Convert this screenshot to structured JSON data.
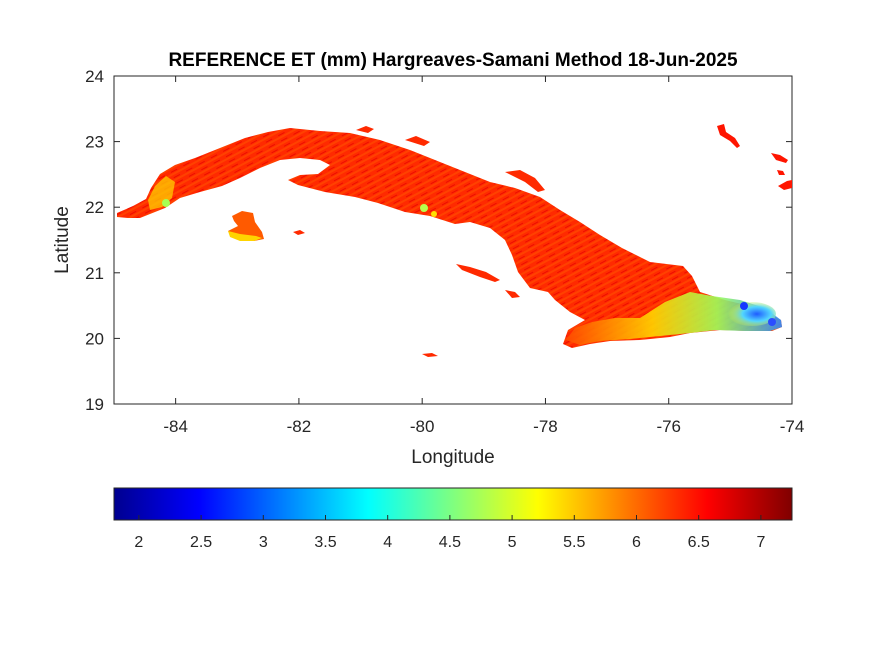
{
  "chart_data": {
    "type": "heatmap",
    "title": "REFERENCE ET (mm) Hargreaves-Samani Method  18-Jun-2025",
    "xlabel": "Longitude",
    "ylabel": "Latitude",
    "xlim": [
      -85,
      -74
    ],
    "ylim": [
      19,
      24
    ],
    "x_ticks": [
      -84,
      -82,
      -80,
      -78,
      -76,
      -74
    ],
    "y_ticks": [
      19,
      20,
      21,
      22,
      23,
      24
    ],
    "x_tick_labels": [
      "-84",
      "-82",
      "-80",
      "-78",
      "-76",
      "-74"
    ],
    "y_tick_labels": [
      "19",
      "20",
      "21",
      "22",
      "23",
      "24"
    ],
    "colorbar": {
      "orientation": "horizontal",
      "placement": "below",
      "colormap": "jet",
      "range": [
        1.8,
        7.25
      ],
      "ticks": [
        2,
        2.5,
        3,
        3.5,
        4,
        4.5,
        5,
        5.5,
        6,
        6.5,
        7
      ],
      "tick_labels": [
        "2",
        "2.5",
        "3",
        "3.5",
        "4",
        "4.5",
        "5",
        "5.5",
        "6",
        "6.5",
        "7"
      ]
    },
    "region": "Cuba",
    "dominant_value_range": [
      6,
      7
    ],
    "areas": [
      {
        "feature": "main-island",
        "value": 6.6
      },
      {
        "feature": "isla-de-la-juventud",
        "value": 6.0
      },
      {
        "feature": "western-tip",
        "value": 5.4
      },
      {
        "feature": "southeast-coast",
        "value": 4.8
      },
      {
        "feature": "eastern-tip",
        "value": 3.5
      }
    ]
  }
}
